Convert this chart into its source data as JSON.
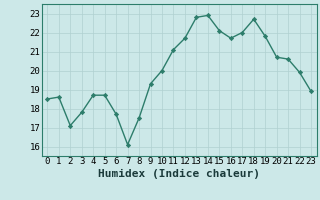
{
  "x": [
    0,
    1,
    2,
    3,
    4,
    5,
    6,
    7,
    8,
    9,
    10,
    11,
    12,
    13,
    14,
    15,
    16,
    17,
    18,
    19,
    20,
    21,
    22,
    23
  ],
  "y": [
    18.5,
    18.6,
    17.1,
    17.8,
    18.7,
    18.7,
    17.7,
    16.1,
    17.5,
    19.3,
    20.0,
    21.1,
    21.7,
    22.8,
    22.9,
    22.1,
    21.7,
    22.0,
    22.7,
    21.8,
    20.7,
    20.6,
    19.9,
    18.9
  ],
  "xlabel": "Humidex (Indice chaleur)",
  "ylim": [
    15.5,
    23.5
  ],
  "yticks": [
    16,
    17,
    18,
    19,
    20,
    21,
    22,
    23
  ],
  "xticks": [
    0,
    1,
    2,
    3,
    4,
    5,
    6,
    7,
    8,
    9,
    10,
    11,
    12,
    13,
    14,
    15,
    16,
    17,
    18,
    19,
    20,
    21,
    22,
    23
  ],
  "line_color": "#2d7d6b",
  "marker_color": "#2d7d6b",
  "bg_color": "#cce8e8",
  "grid_color": "#b0d0d0",
  "xlabel_fontsize": 8,
  "tick_fontsize": 6.5
}
